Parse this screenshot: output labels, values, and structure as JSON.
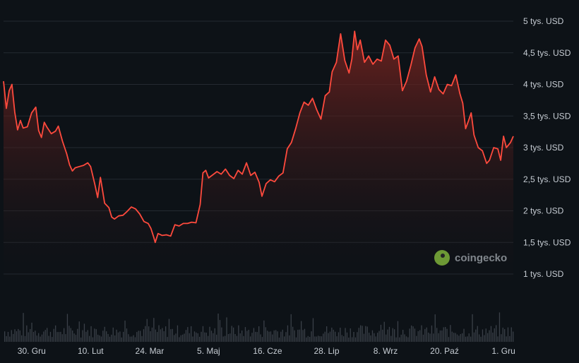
{
  "colors": {
    "background": "#0d1217",
    "line": "#ff4a3d",
    "area_top": "#7a2420",
    "grid": "#242a31",
    "volume": "#3a4048"
  },
  "watermark": {
    "text": "coingecko",
    "icon": "coingecko-logo-icon"
  },
  "chart_data": {
    "type": "area",
    "title": "",
    "xlabel": "",
    "ylabel": "",
    "y_unit": "USD",
    "ylim": [
      600,
      5300
    ],
    "grid": "horizontal",
    "y_ticks": [
      {
        "value": 5000,
        "label": "5 tys. USD"
      },
      {
        "value": 4500,
        "label": "4,5 tys. USD"
      },
      {
        "value": 4000,
        "label": "4 tys. USD"
      },
      {
        "value": 3500,
        "label": "3,5 tys. USD"
      },
      {
        "value": 3000,
        "label": "3 tys. USD"
      },
      {
        "value": 2500,
        "label": "2,5 tys. USD"
      },
      {
        "value": 2000,
        "label": "2 tys. USD"
      },
      {
        "value": 1500,
        "label": "1,5 tys. USD"
      },
      {
        "value": 1000,
        "label": "1 tys. USD"
      }
    ],
    "x_ticks": [
      {
        "date": "2022-12-30",
        "label": "30. Gru"
      },
      {
        "date": "2023-02-10",
        "label": "10. Lut"
      },
      {
        "date": "2023-03-24",
        "label": "24. Mar"
      },
      {
        "date": "2023-05-05",
        "label": "5. Maj"
      },
      {
        "date": "2023-06-16",
        "label": "16. Cze"
      },
      {
        "date": "2023-07-28",
        "label": "28. Lip"
      },
      {
        "date": "2023-09-08",
        "label": "8. Wrz"
      },
      {
        "date": "2023-10-20",
        "label": "20. Paź"
      },
      {
        "date": "2023-12-01",
        "label": "1. Gru"
      }
    ],
    "x_range": [
      "2022-12-10",
      "2023-12-08"
    ],
    "series": [
      {
        "points": [
          [
            "2022-12-10",
            4050
          ],
          [
            "2022-12-12",
            3620
          ],
          [
            "2022-12-14",
            3900
          ],
          [
            "2022-12-16",
            4000
          ],
          [
            "2022-12-18",
            3560
          ],
          [
            "2022-12-20",
            3280
          ],
          [
            "2022-12-22",
            3430
          ],
          [
            "2022-12-24",
            3310
          ],
          [
            "2022-12-27",
            3330
          ],
          [
            "2022-12-30",
            3550
          ],
          [
            "2023-01-02",
            3640
          ],
          [
            "2023-01-04",
            3270
          ],
          [
            "2023-01-06",
            3160
          ],
          [
            "2023-01-08",
            3400
          ],
          [
            "2023-01-10",
            3320
          ],
          [
            "2023-01-13",
            3220
          ],
          [
            "2023-01-16",
            3260
          ],
          [
            "2023-01-18",
            3340
          ],
          [
            "2023-01-21",
            3100
          ],
          [
            "2023-01-24",
            2900
          ],
          [
            "2023-01-26",
            2730
          ],
          [
            "2023-01-28",
            2630
          ],
          [
            "2023-01-30",
            2680
          ],
          [
            "2023-02-02",
            2700
          ],
          [
            "2023-02-05",
            2720
          ],
          [
            "2023-02-08",
            2760
          ],
          [
            "2023-02-10",
            2700
          ],
          [
            "2023-02-13",
            2420
          ],
          [
            "2023-02-15",
            2210
          ],
          [
            "2023-02-17",
            2530
          ],
          [
            "2023-02-20",
            2120
          ],
          [
            "2023-02-23",
            2050
          ],
          [
            "2023-02-25",
            1900
          ],
          [
            "2023-02-27",
            1870
          ],
          [
            "2023-03-02",
            1920
          ],
          [
            "2023-03-05",
            1930
          ],
          [
            "2023-03-08",
            1990
          ],
          [
            "2023-03-11",
            2060
          ],
          [
            "2023-03-14",
            2030
          ],
          [
            "2023-03-17",
            1950
          ],
          [
            "2023-03-20",
            1830
          ],
          [
            "2023-03-23",
            1800
          ],
          [
            "2023-03-25",
            1720
          ],
          [
            "2023-03-27",
            1580
          ],
          [
            "2023-03-28",
            1500
          ],
          [
            "2023-03-30",
            1640
          ],
          [
            "2023-04-02",
            1610
          ],
          [
            "2023-04-05",
            1620
          ],
          [
            "2023-04-08",
            1600
          ],
          [
            "2023-04-11",
            1780
          ],
          [
            "2023-04-14",
            1760
          ],
          [
            "2023-04-17",
            1800
          ],
          [
            "2023-04-20",
            1800
          ],
          [
            "2023-04-23",
            1820
          ],
          [
            "2023-04-26",
            1810
          ],
          [
            "2023-04-29",
            2100
          ],
          [
            "2023-05-01",
            2600
          ],
          [
            "2023-05-03",
            2640
          ],
          [
            "2023-05-05",
            2520
          ],
          [
            "2023-05-08",
            2570
          ],
          [
            "2023-05-11",
            2620
          ],
          [
            "2023-05-14",
            2580
          ],
          [
            "2023-05-17",
            2660
          ],
          [
            "2023-05-20",
            2560
          ],
          [
            "2023-05-23",
            2510
          ],
          [
            "2023-05-26",
            2640
          ],
          [
            "2023-05-29",
            2580
          ],
          [
            "2023-06-01",
            2760
          ],
          [
            "2023-06-04",
            2560
          ],
          [
            "2023-06-07",
            2610
          ],
          [
            "2023-06-10",
            2450
          ],
          [
            "2023-06-12",
            2230
          ],
          [
            "2023-06-15",
            2430
          ],
          [
            "2023-06-18",
            2490
          ],
          [
            "2023-06-21",
            2460
          ],
          [
            "2023-06-24",
            2550
          ],
          [
            "2023-06-27",
            2600
          ],
          [
            "2023-06-30",
            2980
          ],
          [
            "2023-07-03",
            3080
          ],
          [
            "2023-07-06",
            3300
          ],
          [
            "2023-07-09",
            3550
          ],
          [
            "2023-07-12",
            3720
          ],
          [
            "2023-07-15",
            3670
          ],
          [
            "2023-07-18",
            3780
          ],
          [
            "2023-07-21",
            3600
          ],
          [
            "2023-07-24",
            3450
          ],
          [
            "2023-07-27",
            3820
          ],
          [
            "2023-07-30",
            3880
          ],
          [
            "2023-08-01",
            4200
          ],
          [
            "2023-08-04",
            4350
          ],
          [
            "2023-08-07",
            4800
          ],
          [
            "2023-08-10",
            4380
          ],
          [
            "2023-08-13",
            4180
          ],
          [
            "2023-08-15",
            4400
          ],
          [
            "2023-08-17",
            4840
          ],
          [
            "2023-08-19",
            4550
          ],
          [
            "2023-08-21",
            4700
          ],
          [
            "2023-08-24",
            4350
          ],
          [
            "2023-08-27",
            4450
          ],
          [
            "2023-08-30",
            4320
          ],
          [
            "2023-09-02",
            4400
          ],
          [
            "2023-09-05",
            4370
          ],
          [
            "2023-09-08",
            4700
          ],
          [
            "2023-09-11",
            4620
          ],
          [
            "2023-09-14",
            4400
          ],
          [
            "2023-09-17",
            4450
          ],
          [
            "2023-09-20",
            3900
          ],
          [
            "2023-09-23",
            4050
          ],
          [
            "2023-09-26",
            4300
          ],
          [
            "2023-09-29",
            4580
          ],
          [
            "2023-10-02",
            4720
          ],
          [
            "2023-10-04",
            4600
          ],
          [
            "2023-10-07",
            4150
          ],
          [
            "2023-10-10",
            3880
          ],
          [
            "2023-10-13",
            4120
          ],
          [
            "2023-10-16",
            3920
          ],
          [
            "2023-10-19",
            3850
          ],
          [
            "2023-10-22",
            4000
          ],
          [
            "2023-10-25",
            3980
          ],
          [
            "2023-10-28",
            4150
          ],
          [
            "2023-10-31",
            3850
          ],
          [
            "2023-11-02",
            3700
          ],
          [
            "2023-11-04",
            3300
          ],
          [
            "2023-11-06",
            3420
          ],
          [
            "2023-11-08",
            3550
          ],
          [
            "2023-11-10",
            3200
          ],
          [
            "2023-11-13",
            3000
          ],
          [
            "2023-11-16",
            2950
          ],
          [
            "2023-11-19",
            2750
          ],
          [
            "2023-11-21",
            2800
          ],
          [
            "2023-11-24",
            3000
          ],
          [
            "2023-11-27",
            2980
          ],
          [
            "2023-11-29",
            2800
          ],
          [
            "2023-12-01",
            3180
          ],
          [
            "2023-12-03",
            3000
          ],
          [
            "2023-12-06",
            3080
          ],
          [
            "2023-12-08",
            3180
          ]
        ]
      }
    ]
  }
}
